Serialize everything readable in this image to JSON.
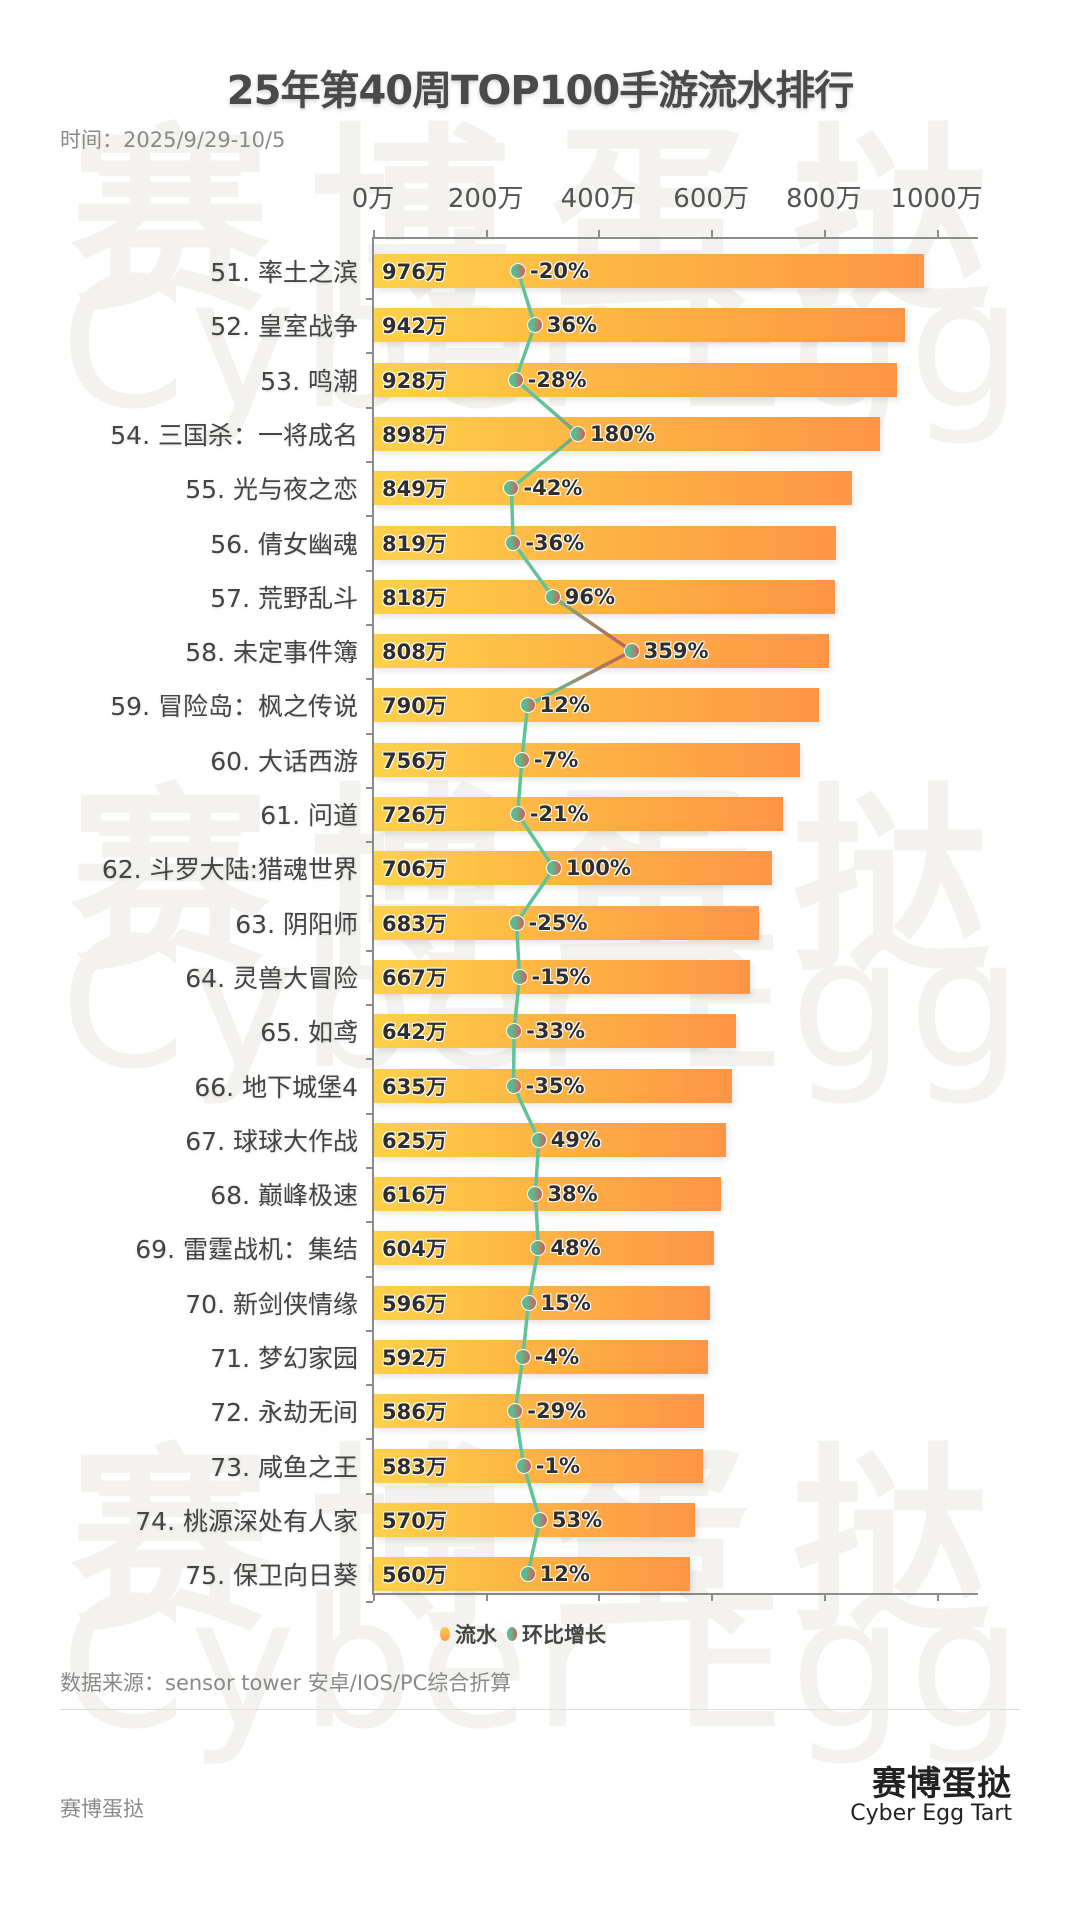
{
  "header": {
    "title": "25年第40周TOP100手游流水排行",
    "date": "时间：2025/9/29-10/5"
  },
  "watermark": {
    "cn": "赛博蛋挞",
    "en": "Cyber Egg Tart"
  },
  "legend": {
    "flow": "流水",
    "growth": "环比增长"
  },
  "footer": {
    "source": "数据来源：sensor tower 安卓/IOS/PC综合折算",
    "brand_cn": "赛博蛋挞",
    "brand_en": "Cyber Egg Tart",
    "brand_left": "赛博蛋挞"
  },
  "colors": {
    "bar_start": "#fdd14a",
    "bar_end": "#fe9546",
    "line_low": "#5fc49a",
    "line_high": "#c9574f"
  },
  "chart_data": {
    "type": "bar",
    "title": "25年第40周TOP100手游流水排行",
    "subtitle": "时间：2025/9/29-10/5",
    "xlabel": "",
    "ylabel": "",
    "xlim": [
      0,
      1000
    ],
    "x_ticks": [
      "0万",
      "200万",
      "400万",
      "600万",
      "800万",
      "1000万"
    ],
    "legend_position": "bottom",
    "grid": false,
    "categories": [
      "51. 率土之滨",
      "52. 皇室战争",
      "53. 鸣潮",
      "54. 三国杀：一将成名",
      "55. 光与夜之恋",
      "56. 倩女幽魂",
      "57. 荒野乱斗",
      "58. 未定事件簿",
      "59. 冒险岛：枫之传说",
      "60. 大话西游",
      "61. 问道",
      "62. 斗罗大陆:猎魂世界",
      "63. 阴阳师",
      "64. 灵兽大冒险",
      "65. 如鸢",
      "66. 地下城堡4",
      "67. 球球大作战",
      "68. 巅峰极速",
      "69. 雷霆战机：集结",
      "70. 新剑侠情缘",
      "71. 梦幻家园",
      "72. 永劫无间",
      "73. 咸鱼之王",
      "74. 桃源深处有人家",
      "75. 保卫向日葵"
    ],
    "series": [
      {
        "name": "流水",
        "type": "bar",
        "unit": "万",
        "values": [
          976,
          942,
          928,
          898,
          849,
          819,
          818,
          808,
          790,
          756,
          726,
          706,
          683,
          667,
          642,
          635,
          625,
          616,
          604,
          596,
          592,
          586,
          583,
          570,
          560
        ],
        "labels": [
          "976万",
          "942万",
          "928万",
          "898万",
          "849万",
          "819万",
          "818万",
          "808万",
          "790万",
          "756万",
          "726万",
          "706万",
          "683万",
          "667万",
          "642万",
          "635万",
          "625万",
          "616万",
          "604万",
          "596万",
          "592万",
          "586万",
          "583万",
          "570万",
          "560万"
        ]
      },
      {
        "name": "环比增长",
        "type": "line",
        "unit": "%",
        "values": [
          -20,
          36,
          -28,
          180,
          -42,
          -36,
          96,
          359,
          12,
          -7,
          -21,
          100,
          -25,
          -15,
          -33,
          -35,
          49,
          38,
          48,
          15,
          -4,
          -29,
          -1,
          53,
          12
        ],
        "labels": [
          "-20%",
          "36%",
          "-28%",
          "180%",
          "-42%",
          "-36%",
          "96%",
          "359%",
          "12%",
          "-7%",
          "-21%",
          "100%",
          "-25%",
          "-15%",
          "-33%",
          "-35%",
          "49%",
          "38%",
          "48%",
          "15%",
          "-4%",
          "-29%",
          "-1%",
          "53%",
          "12%"
        ]
      }
    ]
  }
}
